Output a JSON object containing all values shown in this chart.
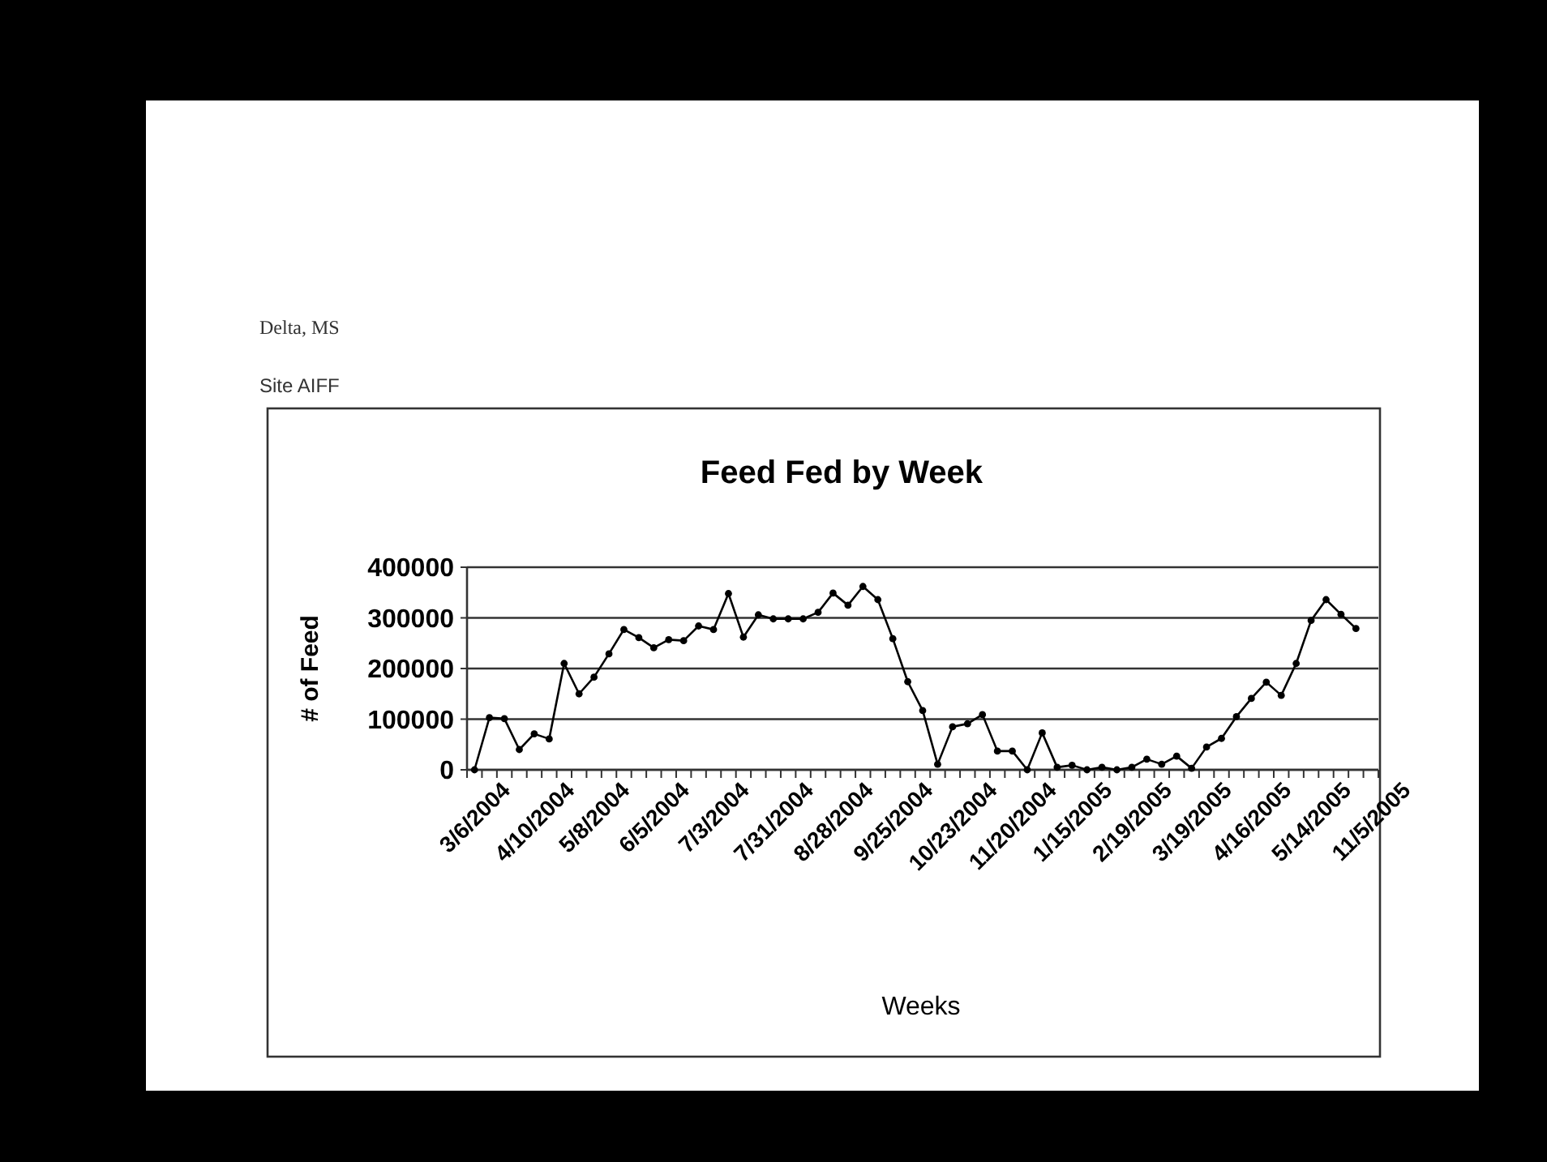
{
  "chart_data": {
    "type": "line",
    "title": "Feed Fed by Week",
    "xlabel": "Weeks",
    "ylabel": "# of Feed",
    "annotations": [
      "Delta, MS",
      "Site  AIFF"
    ],
    "categories": [
      "3/6/2004",
      null,
      null,
      null,
      "4/10/2004",
      null,
      null,
      null,
      "5/8/2004",
      null,
      null,
      null,
      "6/5/2004",
      null,
      null,
      null,
      "7/3/2004",
      null,
      null,
      null,
      "7/31/2004",
      null,
      null,
      null,
      "8/28/2004",
      null,
      null,
      null,
      "9/25/2004",
      null,
      null,
      null,
      "10/23/2004",
      null,
      null,
      null,
      "11/20/2004",
      null,
      null,
      null,
      "1/15/2005",
      null,
      null,
      null,
      "2/19/2005",
      null,
      null,
      null,
      "3/19/2005",
      null,
      null,
      null,
      "4/16/2005",
      null,
      null,
      null,
      "5/14/2005",
      null,
      null,
      null,
      "11/5/2005"
    ],
    "series": [
      {
        "color": "#000000",
        "values": [
          0,
          103000,
          101000,
          40000,
          71000,
          61000,
          210000,
          150000,
          183000,
          229000,
          277000,
          261000,
          241000,
          257000,
          255000,
          284000,
          277000,
          348000,
          262000,
          306000,
          298000,
          298000,
          298000,
          311000,
          349000,
          325000,
          362000,
          336000,
          259000,
          174000,
          117000,
          11000,
          85000,
          91000,
          109000,
          37000,
          37000,
          0,
          73000,
          5000,
          9000,
          0,
          5000,
          0,
          5000,
          21000,
          11000,
          27000,
          3000,
          45000,
          62000,
          105000,
          141000,
          173000,
          147000,
          210000,
          295000,
          336000,
          307000,
          279000,
          null
        ]
      }
    ],
    "ylim": [
      0,
      400000
    ],
    "yticks": [
      0,
      100000,
      200000,
      300000,
      400000
    ],
    "grid": "y",
    "marker": "circle",
    "line_style": "solid"
  }
}
